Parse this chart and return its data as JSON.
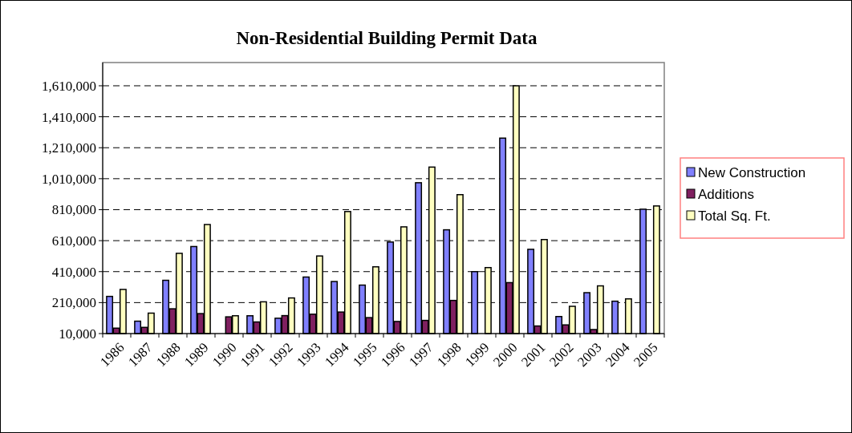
{
  "chart_data": {
    "type": "bar",
    "title": "Non-Residential Building Permit Data",
    "categories": [
      "1986",
      "1987",
      "1988",
      "1989",
      "1990",
      "1991",
      "1992",
      "1993",
      "1994",
      "1995",
      "1996",
      "1997",
      "1998",
      "1999",
      "2000",
      "2001",
      "2002",
      "2003",
      "2004",
      "2005"
    ],
    "series": [
      {
        "name": "New Construction",
        "color": "#8080ff",
        "values": [
          250000,
          90000,
          354000,
          572000,
          null,
          125000,
          109000,
          375000,
          346000,
          323000,
          601000,
          984000,
          680000,
          410000,
          1272000,
          554000,
          120000,
          274000,
          219000,
          813000
        ]
      },
      {
        "name": "Additions",
        "color": "#802060",
        "values": [
          45000,
          50000,
          170000,
          139000,
          118000,
          85000,
          126000,
          135000,
          149000,
          113000,
          88000,
          95000,
          224000,
          null,
          339000,
          59000,
          66000,
          36000,
          null,
          null
        ]
      },
      {
        "name": "Total Sq. Ft.",
        "color": "#ffffc0",
        "values": [
          295000,
          142000,
          528000,
          714000,
          125000,
          215000,
          240000,
          511000,
          798000,
          441000,
          699000,
          1085000,
          907000,
          436000,
          1610000,
          617000,
          186000,
          318000,
          234000,
          834000
        ]
      }
    ],
    "ylim": [
      10000,
      1760000
    ],
    "yticks": [
      {
        "value": 10000,
        "label": "10,000"
      },
      {
        "value": 210000,
        "label": "210,000"
      },
      {
        "value": 410000,
        "label": "410,000"
      },
      {
        "value": 610000,
        "label": "610,000"
      },
      {
        "value": 810000,
        "label": "810,000"
      },
      {
        "value": 1010000,
        "label": "1,010,000"
      },
      {
        "value": 1210000,
        "label": "1,210,000"
      },
      {
        "value": 1410000,
        "label": "1,410,000"
      },
      {
        "value": 1610000,
        "label": "1,610,000"
      }
    ],
    "grid": "y",
    "legend": "right"
  }
}
